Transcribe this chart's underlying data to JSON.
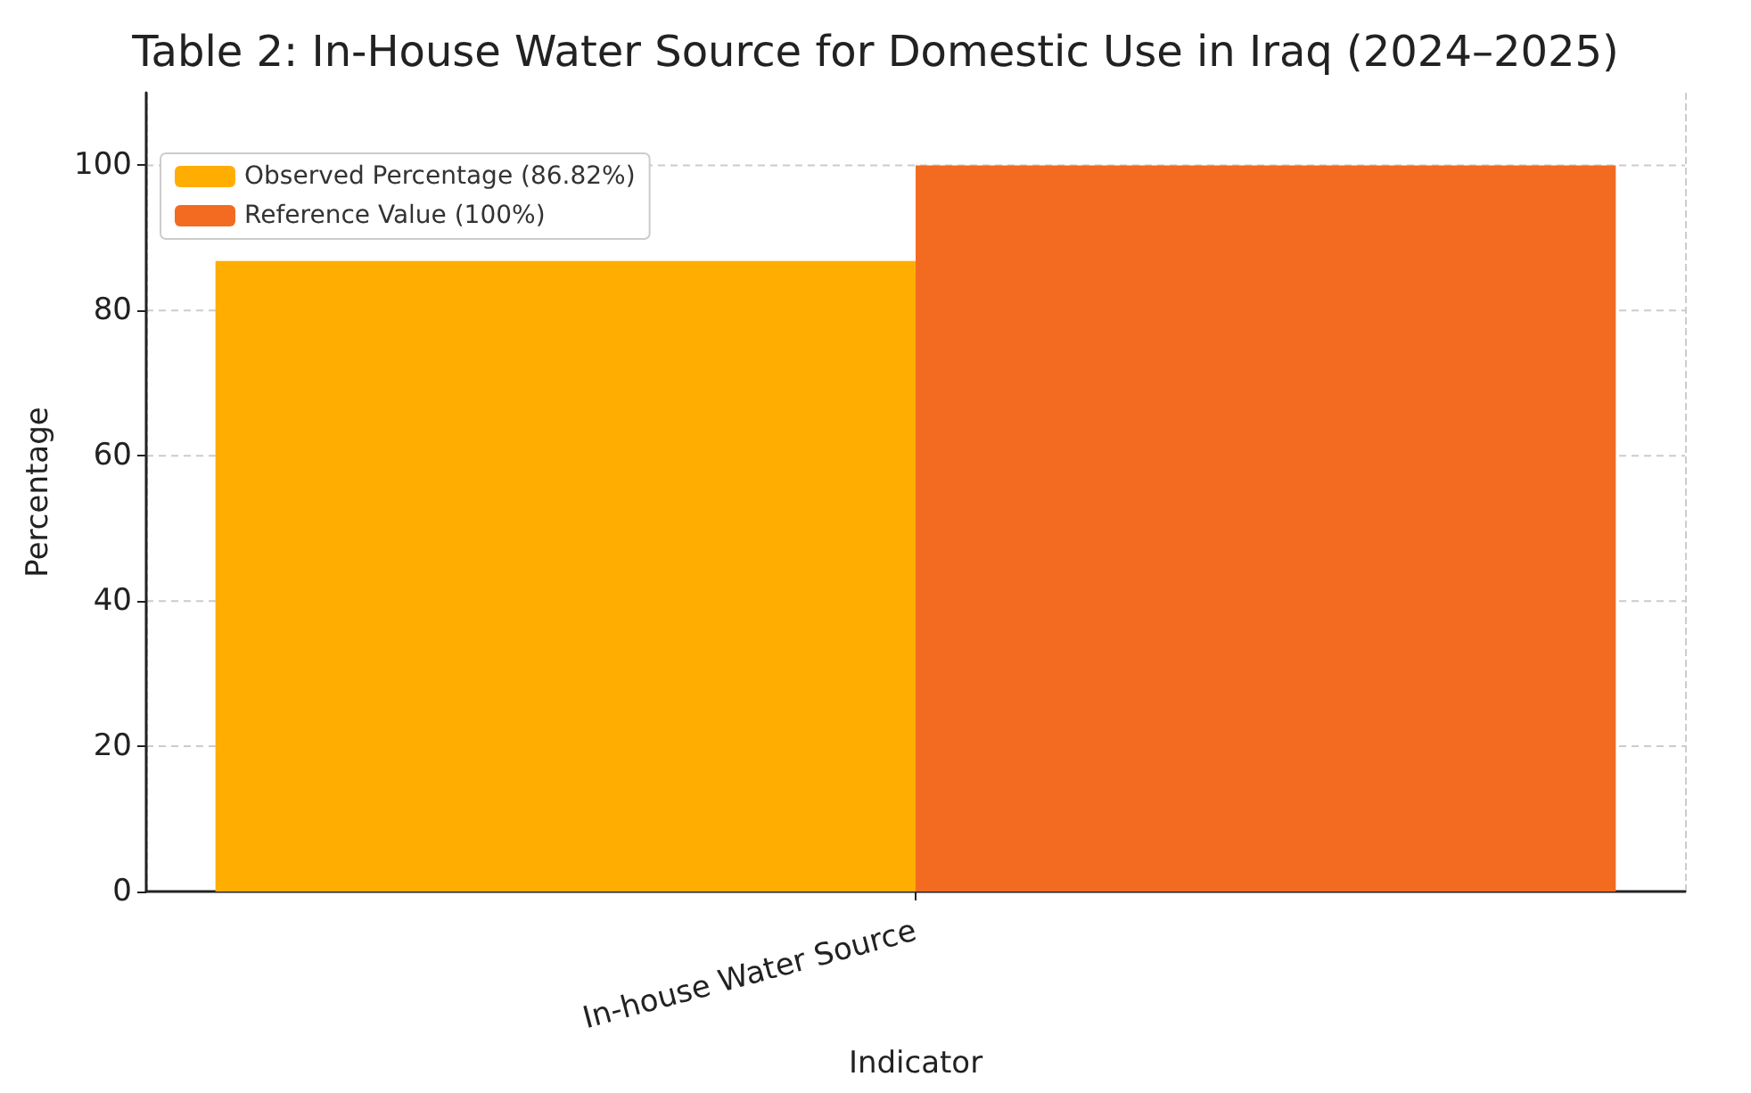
{
  "chart_data": {
    "type": "bar",
    "title": "Table 2: In-House Water Source for Domestic Use in Iraq (2024–2025)",
    "xlabel": "Indicator",
    "ylabel": "Percentage",
    "categories": [
      "In-house Water Source"
    ],
    "series": [
      {
        "name": "Observed Percentage (86.82%)",
        "color": "#ffad00",
        "values": [
          86.82
        ]
      },
      {
        "name": "Reference Value (100%)",
        "color": "#f26b21",
        "values": [
          100
        ]
      }
    ],
    "ylim": [
      0,
      110
    ],
    "yticks": [
      0,
      20,
      40,
      60,
      80,
      100
    ],
    "grid": true,
    "legend": "top left"
  }
}
